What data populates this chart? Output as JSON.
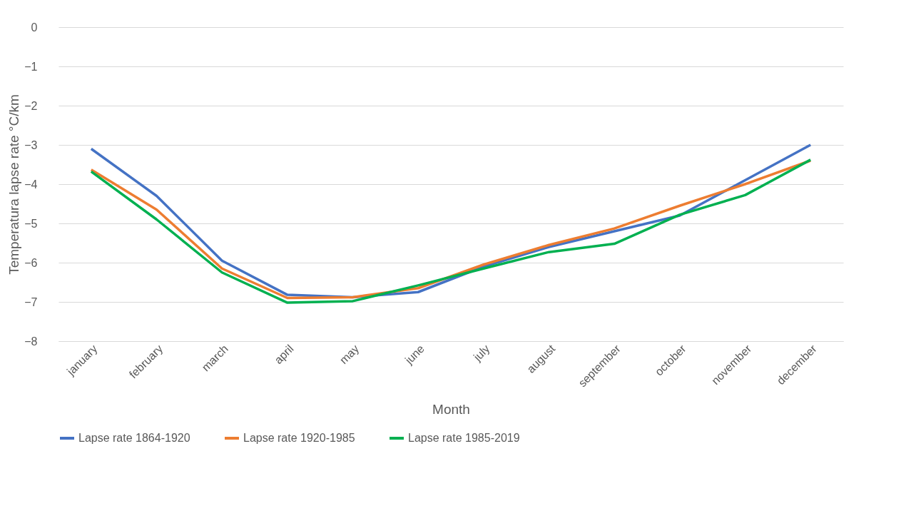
{
  "chart_data": {
    "type": "line",
    "xlabel": "Month",
    "ylabel": "Temperatura lapse rate °C/km",
    "categories": [
      "january",
      "february",
      "march",
      "april",
      "may",
      "june",
      "july",
      "august",
      "september",
      "october",
      "november",
      "december"
    ],
    "series": [
      {
        "name": "Lapse rate 1864-1920",
        "color": "#4472c4",
        "values": [
          -3.1,
          -4.3,
          -5.95,
          -6.82,
          -6.88,
          -6.75,
          -6.1,
          -5.6,
          -5.2,
          -4.8,
          -3.9,
          -3.0
        ]
      },
      {
        "name": "Lapse rate 1920-1985",
        "color": "#ed7d31",
        "values": [
          -3.63,
          -4.65,
          -6.15,
          -6.9,
          -6.88,
          -6.65,
          -6.05,
          -5.55,
          -5.13,
          -4.55,
          -4.0,
          -3.4
        ]
      },
      {
        "name": "Lapse rate 1985-2019",
        "color": "#00b050",
        "values": [
          -3.68,
          -4.9,
          -6.25,
          -7.02,
          -6.98,
          -6.58,
          -6.15,
          -5.73,
          -5.52,
          -4.78,
          -4.28,
          -3.38
        ]
      }
    ],
    "ylim": [
      -8,
      0
    ],
    "yticks": [
      -8,
      -7,
      -6,
      -5,
      -4,
      -3,
      -2,
      -1,
      0
    ],
    "grid": "y",
    "legend": "bottom",
    "marker": "none",
    "line_style": "solid"
  }
}
